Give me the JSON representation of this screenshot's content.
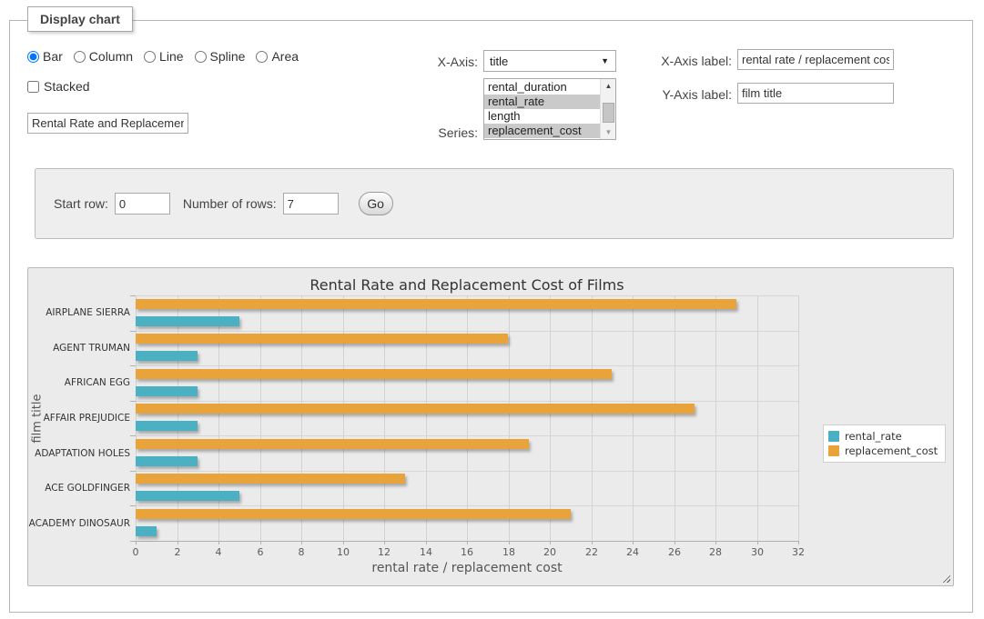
{
  "window": {
    "panel_legend": "Display chart"
  },
  "chart_types": {
    "options": [
      {
        "label": "Bar",
        "selected": true
      },
      {
        "label": "Column",
        "selected": false
      },
      {
        "label": "Line",
        "selected": false
      },
      {
        "label": "Spline",
        "selected": false
      },
      {
        "label": "Area",
        "selected": false
      }
    ]
  },
  "stacked": {
    "label": "Stacked",
    "checked": false
  },
  "chart_title_input": {
    "value": "Rental Rate and Replacement Cost of Films"
  },
  "x_axis_select": {
    "label": "X-Axis:",
    "selected_value": "title"
  },
  "series_listbox": {
    "label": "Series:",
    "options": [
      {
        "label": "rental_duration",
        "selected": false
      },
      {
        "label": "rental_rate",
        "selected": true
      },
      {
        "label": "length",
        "selected": false
      },
      {
        "label": "replacement_cost",
        "selected": true
      }
    ]
  },
  "axis_labels": {
    "x_label_caption": "X-Axis label:",
    "x_label_value": "rental rate / replacement cost",
    "y_label_caption": "Y-Axis label:",
    "y_label_value": "film title"
  },
  "row_controls": {
    "start_row_label": "Start row:",
    "start_row_value": "0",
    "num_rows_label": "Number of rows:",
    "num_rows_value": "7",
    "go_label": "Go"
  },
  "chart_data": {
    "type": "bar",
    "orientation": "horizontal",
    "title": "Rental Rate and Replacement Cost of Films",
    "xlabel": "rental rate / replacement cost",
    "ylabel": "film title",
    "categories": [
      "AIRPLANE SIERRA",
      "AGENT TRUMAN",
      "AFRICAN EGG",
      "AFFAIR PREJUDICE",
      "ADAPTATION HOLES",
      "ACE GOLDFINGER",
      "ACADEMY DINOSAUR"
    ],
    "series": [
      {
        "name": "rental_rate",
        "color": "#4AB0C2",
        "values": [
          4.99,
          2.99,
          2.99,
          2.99,
          2.99,
          4.99,
          0.99
        ]
      },
      {
        "name": "replacement_cost",
        "color": "#E9A33B",
        "values": [
          28.99,
          17.99,
          22.99,
          26.99,
          18.99,
          12.99,
          20.99
        ]
      }
    ],
    "xlim": [
      0,
      32
    ],
    "xtick_step": 2,
    "grid": true,
    "legend_position": "right"
  },
  "colors": {
    "rental_rate": "#4AB0C2",
    "replacement_cost": "#E9A33B",
    "selected_option_bg": "#CACACA",
    "panel_bg": "#EBEBEB"
  }
}
